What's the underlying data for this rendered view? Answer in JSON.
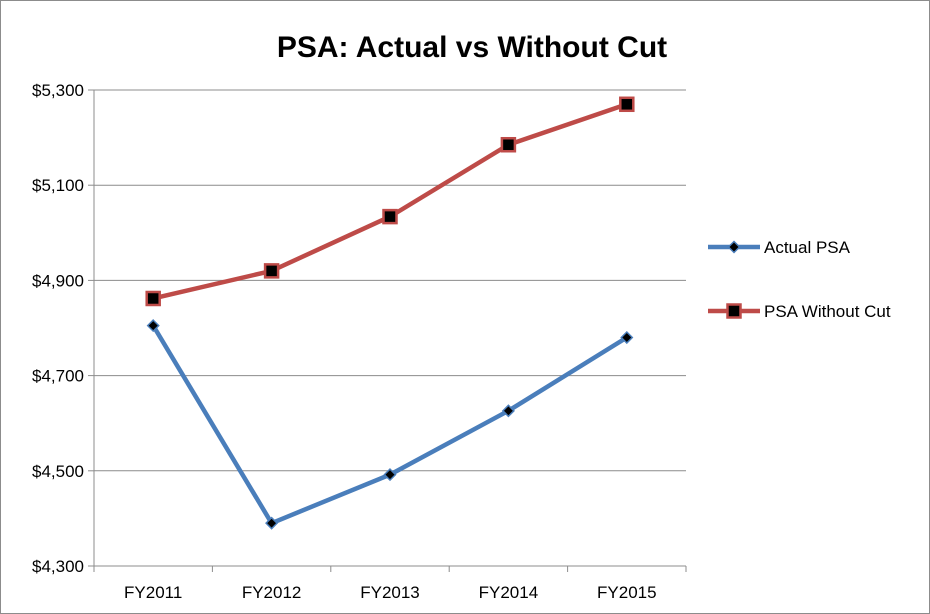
{
  "chart_data": {
    "type": "line",
    "title": "PSA: Actual vs Without Cut",
    "categories": [
      "FY2011",
      "FY2012",
      "FY2013",
      "FY2014",
      "FY2015"
    ],
    "y_tick_labels": [
      "$4,300",
      "$4,500",
      "$4,700",
      "$4,900",
      "$5,100",
      "$5,300"
    ],
    "y_ticks": [
      4300,
      4500,
      4700,
      4900,
      5100,
      5300
    ],
    "ylim": [
      4300,
      5300
    ],
    "grid": true,
    "legend_position": "right",
    "series": [
      {
        "name": "Actual PSA",
        "color": "#4a7ebb",
        "marker": "diamond",
        "values": [
          4805,
          4390,
          4492,
          4626,
          4780
        ]
      },
      {
        "name": "PSA Without Cut",
        "color": "#be4b48",
        "marker": "square",
        "values": [
          4862,
          4920,
          5034,
          5185,
          5270
        ]
      }
    ]
  }
}
